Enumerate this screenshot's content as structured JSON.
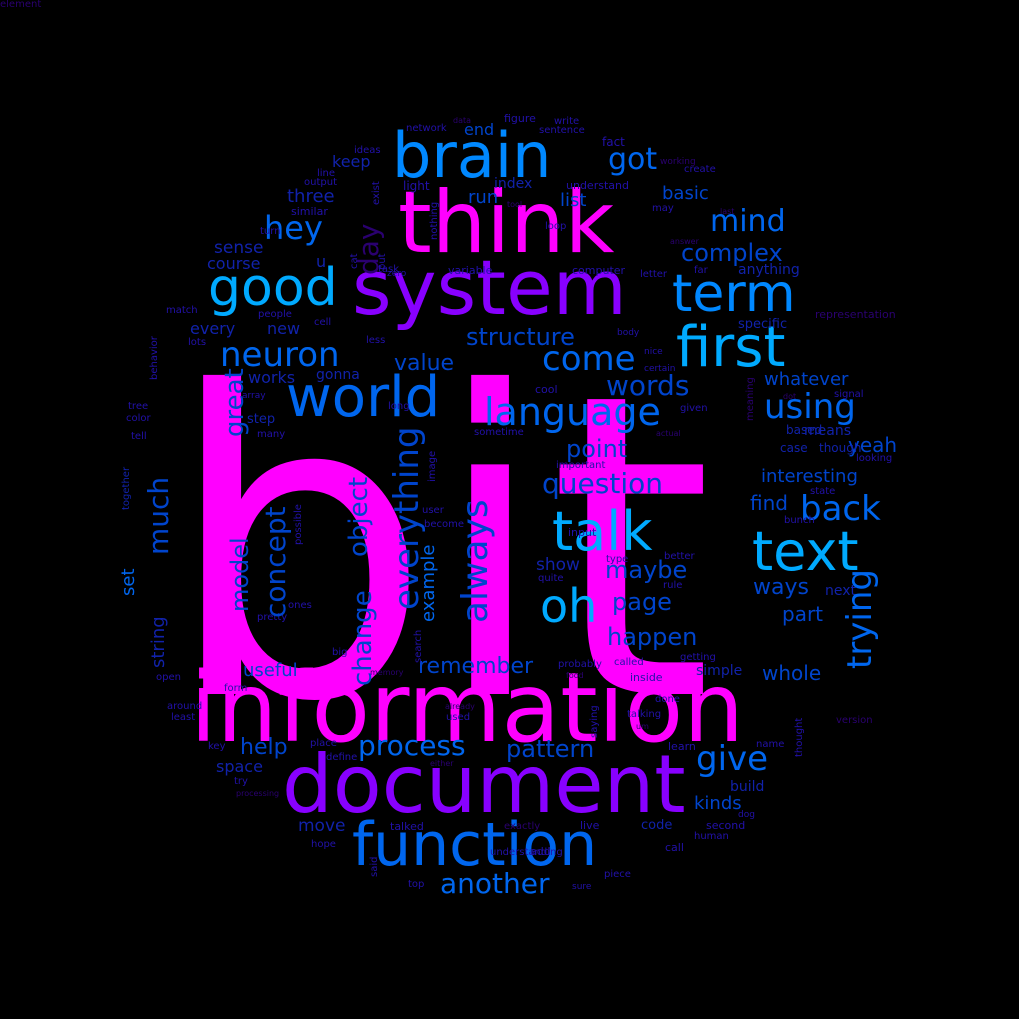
{
  "colors": {
    "background": "#000000",
    "magenta": "#ff00ff",
    "violet": "#8800ff",
    "purple": "#aa00ee",
    "sky": "#00aaff",
    "azure": "#0088ff",
    "blue": "#0066ee",
    "royal": "#0044cc",
    "navy": "#1122aa",
    "indigo": "#2211aa",
    "deep": "#330088",
    "dim": "#2a0070",
    "faint": "#22005a"
  },
  "words": [
    {
      "text": "bit",
      "c": "magenta"
    },
    {
      "text": "information",
      "c": "magenta"
    },
    {
      "text": "think",
      "c": "magenta"
    },
    {
      "text": "system",
      "c": "violet"
    },
    {
      "text": "document",
      "c": "violet"
    },
    {
      "text": "brain",
      "c": "azure"
    },
    {
      "text": "good",
      "c": "sky"
    },
    {
      "text": "world",
      "c": "blue"
    },
    {
      "text": "term",
      "c": "azure"
    },
    {
      "text": "first",
      "c": "sky"
    },
    {
      "text": "function",
      "c": "blue"
    },
    {
      "text": "text",
      "c": "sky"
    },
    {
      "text": "talk",
      "c": "sky"
    },
    {
      "text": "oh",
      "c": "sky"
    },
    {
      "text": "language",
      "c": "blue"
    },
    {
      "text": "neuron",
      "c": "blue"
    },
    {
      "text": "hey",
      "c": "blue"
    },
    {
      "text": "mind",
      "c": "blue"
    },
    {
      "text": "using",
      "c": "blue"
    },
    {
      "text": "come",
      "c": "blue"
    },
    {
      "text": "got",
      "c": "blue"
    },
    {
      "text": "back",
      "c": "blue"
    },
    {
      "text": "give",
      "c": "blue"
    },
    {
      "text": "process",
      "c": "blue"
    },
    {
      "text": "another",
      "c": "blue"
    },
    {
      "text": "question",
      "c": "royal"
    },
    {
      "text": "words",
      "c": "royal"
    },
    {
      "text": "complex",
      "c": "royal"
    },
    {
      "text": "structure",
      "c": "royal"
    },
    {
      "text": "point",
      "c": "royal"
    },
    {
      "text": "maybe",
      "c": "royal"
    },
    {
      "text": "page",
      "c": "royal"
    },
    {
      "text": "happen",
      "c": "royal"
    },
    {
      "text": "pattern",
      "c": "royal"
    },
    {
      "text": "remember",
      "c": "royal"
    },
    {
      "text": "help",
      "c": "royal"
    },
    {
      "text": "value",
      "c": "royal"
    },
    {
      "text": "list",
      "c": "royal"
    },
    {
      "text": "run",
      "c": "royal"
    },
    {
      "text": "basic",
      "c": "royal"
    },
    {
      "text": "ways",
      "c": "royal"
    },
    {
      "text": "find",
      "c": "royal"
    },
    {
      "text": "interesting",
      "c": "royal"
    },
    {
      "text": "whatever",
      "c": "royal"
    },
    {
      "text": "yeah",
      "c": "royal"
    },
    {
      "text": "part",
      "c": "royal"
    },
    {
      "text": "whole",
      "c": "royal"
    },
    {
      "text": "useful",
      "c": "royal"
    },
    {
      "text": "kinds",
      "c": "royal"
    },
    {
      "text": "end",
      "c": "royal"
    },
    {
      "text": "index",
      "c": "navy"
    },
    {
      "text": "keep",
      "c": "navy"
    },
    {
      "text": "three",
      "c": "navy"
    },
    {
      "text": "sense",
      "c": "navy"
    },
    {
      "text": "course",
      "c": "navy"
    },
    {
      "text": "u",
      "c": "navy"
    },
    {
      "text": "every",
      "c": "navy"
    },
    {
      "text": "new",
      "c": "navy"
    },
    {
      "text": "works",
      "c": "navy"
    },
    {
      "text": "gonna",
      "c": "navy"
    },
    {
      "text": "step",
      "c": "navy"
    },
    {
      "text": "space",
      "c": "navy"
    },
    {
      "text": "move",
      "c": "navy"
    },
    {
      "text": "show",
      "c": "navy"
    },
    {
      "text": "code",
      "c": "navy"
    },
    {
      "text": "next",
      "c": "navy"
    },
    {
      "text": "simple",
      "c": "navy"
    },
    {
      "text": "anything",
      "c": "navy"
    },
    {
      "text": "specific",
      "c": "navy"
    },
    {
      "text": "case",
      "c": "navy"
    },
    {
      "text": "though",
      "c": "navy"
    },
    {
      "text": "based",
      "c": "navy"
    },
    {
      "text": "means",
      "c": "navy"
    },
    {
      "text": "build",
      "c": "navy"
    },
    {
      "text": "light",
      "c": "indigo"
    },
    {
      "text": "understand",
      "c": "indigo"
    },
    {
      "text": "computer",
      "c": "indigo"
    },
    {
      "text": "variable",
      "c": "indigo"
    },
    {
      "text": "task",
      "c": "indigo"
    },
    {
      "text": "input",
      "c": "indigo"
    },
    {
      "text": "cool",
      "c": "indigo"
    },
    {
      "text": "fact",
      "c": "indigo"
    },
    {
      "text": "figure",
      "c": "indigo"
    },
    {
      "text": "network",
      "c": "indigo"
    },
    {
      "text": "sentence",
      "c": "indigo"
    },
    {
      "text": "output",
      "c": "indigo"
    },
    {
      "text": "line",
      "c": "indigo"
    },
    {
      "text": "ideas",
      "c": "indigo"
    },
    {
      "text": "similar",
      "c": "indigo"
    },
    {
      "text": "turn",
      "c": "indigo"
    },
    {
      "text": "match",
      "c": "indigo"
    },
    {
      "text": "people",
      "c": "indigo"
    },
    {
      "text": "lots",
      "c": "indigo"
    },
    {
      "text": "tree",
      "c": "indigo"
    },
    {
      "text": "color",
      "c": "indigo"
    },
    {
      "text": "tell",
      "c": "indigo"
    },
    {
      "text": "array",
      "c": "indigo"
    },
    {
      "text": "long",
      "c": "indigo"
    },
    {
      "text": "many",
      "c": "indigo"
    },
    {
      "text": "sometime",
      "c": "indigo"
    },
    {
      "text": "important",
      "c": "indigo"
    },
    {
      "text": "become",
      "c": "indigo"
    },
    {
      "text": "user",
      "c": "indigo"
    },
    {
      "text": "quite",
      "c": "indigo"
    },
    {
      "text": "ones",
      "c": "indigo"
    },
    {
      "text": "pretty",
      "c": "indigo"
    },
    {
      "text": "open",
      "c": "indigo"
    },
    {
      "text": "around",
      "c": "indigo"
    },
    {
      "text": "least",
      "c": "indigo"
    },
    {
      "text": "form",
      "c": "indigo"
    },
    {
      "text": "big",
      "c": "indigo"
    },
    {
      "text": "key",
      "c": "indigo"
    },
    {
      "text": "try",
      "c": "indigo"
    },
    {
      "text": "place",
      "c": "indigo"
    },
    {
      "text": "define",
      "c": "indigo"
    },
    {
      "text": "hope",
      "c": "indigo"
    },
    {
      "text": "talked",
      "c": "indigo"
    },
    {
      "text": "understanding",
      "c": "indigo"
    },
    {
      "text": "add",
      "c": "indigo"
    },
    {
      "text": "live",
      "c": "indigo"
    },
    {
      "text": "second",
      "c": "indigo"
    },
    {
      "text": "human",
      "c": "indigo"
    },
    {
      "text": "call",
      "c": "indigo"
    },
    {
      "text": "piece",
      "c": "indigo"
    },
    {
      "text": "sure",
      "c": "indigo"
    },
    {
      "text": "top",
      "c": "indigo"
    },
    {
      "text": "dog",
      "c": "indigo"
    },
    {
      "text": "name",
      "c": "indigo"
    },
    {
      "text": "learn",
      "c": "indigo"
    },
    {
      "text": "talking",
      "c": "indigo"
    },
    {
      "text": "used",
      "c": "indigo"
    },
    {
      "text": "done",
      "c": "indigo"
    },
    {
      "text": "inside",
      "c": "indigo"
    },
    {
      "text": "called",
      "c": "indigo"
    },
    {
      "text": "probably",
      "c": "indigo"
    },
    {
      "text": "getting",
      "c": "indigo"
    },
    {
      "text": "rule",
      "c": "indigo"
    },
    {
      "text": "type",
      "c": "indigo"
    },
    {
      "text": "better",
      "c": "indigo"
    },
    {
      "text": "bunch",
      "c": "indigo"
    },
    {
      "text": "state",
      "c": "indigo"
    },
    {
      "text": "looking",
      "c": "indigo"
    },
    {
      "text": "signal",
      "c": "indigo"
    },
    {
      "text": "certain",
      "c": "indigo"
    },
    {
      "text": "nice",
      "c": "indigo"
    },
    {
      "text": "body",
      "c": "indigo"
    },
    {
      "text": "given",
      "c": "indigo"
    },
    {
      "text": "less",
      "c": "indigo"
    },
    {
      "text": "cell",
      "c": "indigo"
    },
    {
      "text": "zero",
      "c": "indigo"
    },
    {
      "text": "letter",
      "c": "indigo"
    },
    {
      "text": "far",
      "c": "indigo"
    },
    {
      "text": "loop",
      "c": "indigo"
    },
    {
      "text": "may",
      "c": "indigo"
    },
    {
      "text": "create",
      "c": "indigo"
    },
    {
      "text": "write",
      "c": "indigo"
    },
    {
      "text": "data",
      "c": "dim"
    },
    {
      "text": "working",
      "c": "dim"
    },
    {
      "text": "tool",
      "c": "dim"
    },
    {
      "text": "last",
      "c": "dim"
    },
    {
      "text": "answer",
      "c": "dim"
    },
    {
      "text": "representation",
      "c": "dim"
    },
    {
      "text": "dot",
      "c": "dim"
    },
    {
      "text": "actual",
      "c": "dim"
    },
    {
      "text": "memory",
      "c": "dim"
    },
    {
      "text": "food",
      "c": "dim"
    },
    {
      "text": "already",
      "c": "dim"
    },
    {
      "text": "either",
      "c": "dim"
    },
    {
      "text": "processing",
      "c": "dim"
    },
    {
      "text": "exactly",
      "c": "dim"
    },
    {
      "text": "um",
      "c": "dim"
    },
    {
      "text": "version",
      "c": "dim"
    },
    {
      "text": "day",
      "c": "dim"
    },
    {
      "text": "great",
      "c": "royal"
    },
    {
      "text": "much",
      "c": "royal"
    },
    {
      "text": "model",
      "c": "royal"
    },
    {
      "text": "concept",
      "c": "royal"
    },
    {
      "text": "change",
      "c": "royal"
    },
    {
      "text": "object",
      "c": "royal"
    },
    {
      "text": "everything",
      "c": "royal"
    },
    {
      "text": "example",
      "c": "blue"
    },
    {
      "text": "always",
      "c": "royal"
    },
    {
      "text": "trying",
      "c": "blue"
    },
    {
      "text": "set",
      "c": "blue"
    },
    {
      "text": "string",
      "c": "navy"
    },
    {
      "text": "together",
      "c": "navy"
    },
    {
      "text": "behavior",
      "c": "indigo"
    },
    {
      "text": "possible",
      "c": "indigo"
    },
    {
      "text": "image",
      "c": "indigo"
    },
    {
      "text": "search",
      "c": "indigo"
    },
    {
      "text": "saying",
      "c": "indigo"
    },
    {
      "text": "said",
      "c": "indigo"
    },
    {
      "text": "put",
      "c": "indigo"
    },
    {
      "text": "cat",
      "c": "indigo"
    },
    {
      "text": "exist",
      "c": "indigo"
    },
    {
      "text": "nothing",
      "c": "indigo"
    },
    {
      "text": "thought",
      "c": "indigo"
    },
    {
      "text": "meaning",
      "c": "dim"
    },
    {
      "text": "element",
      "c": "dim"
    }
  ]
}
